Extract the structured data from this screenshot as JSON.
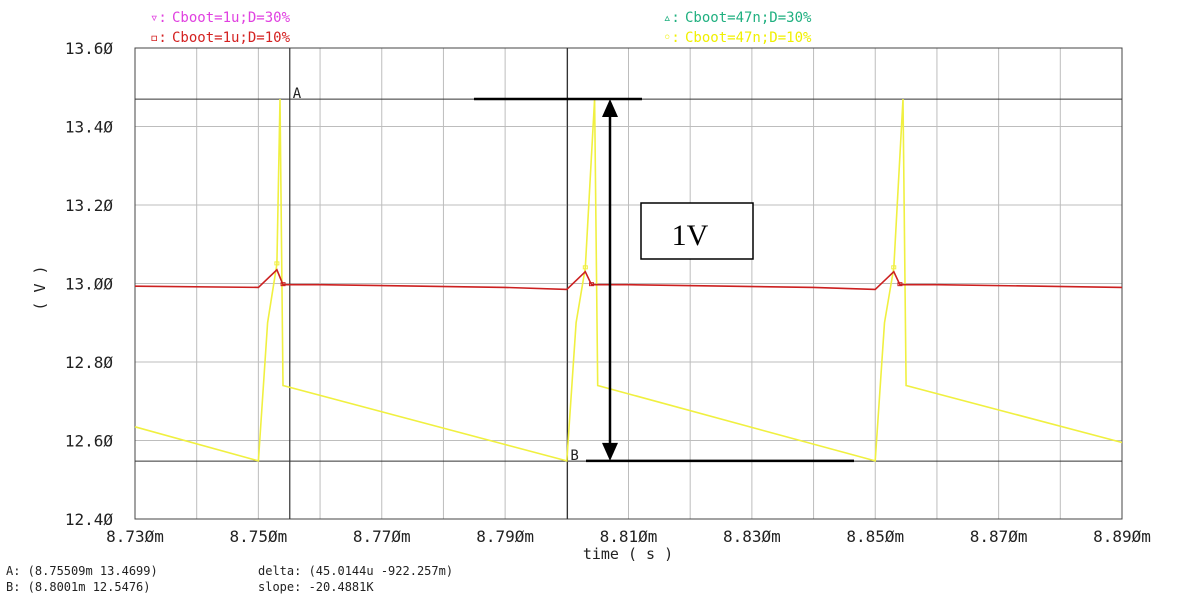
{
  "chart_data": {
    "type": "line",
    "xlabel": "time ( s )",
    "ylabel": "( V )",
    "xlim": [
      8.73,
      8.89
    ],
    "ylim": [
      12.4,
      13.6
    ],
    "x_unit_scale": "ms",
    "x_ticks": [
      "8.730m",
      "8.750m",
      "8.770m",
      "8.790m",
      "8.810m",
      "8.830m",
      "8.850m",
      "8.870m",
      "8.890m"
    ],
    "y_ticks": [
      "12.40",
      "12.60",
      "12.80",
      "13.00",
      "13.20",
      "13.40",
      "13.60"
    ],
    "grid": true,
    "legend": [
      {
        "marker": "▿",
        "name": "Cboot=1u;D=30%",
        "color": "#e040e0",
        "position": "top-left"
      },
      {
        "marker": "▫",
        "name": "Cboot=1u;D=10%",
        "color": "#d42020",
        "position": "top-left"
      },
      {
        "marker": "▵",
        "name": "Cboot=47n;D=30%",
        "color": "#20b080",
        "position": "top-right"
      },
      {
        "marker": "◦",
        "name": "Cboot=47n;D=10%",
        "color": "#f0f000",
        "position": "top-right"
      }
    ],
    "series": [
      {
        "name": "Cboot=47n;D=10%",
        "color": "#f0f040",
        "x": [
          8.73,
          8.75,
          8.7515,
          8.753,
          8.7535,
          8.754,
          8.8,
          8.8015,
          8.803,
          8.8045,
          8.805,
          8.85,
          8.8515,
          8.853,
          8.8545,
          8.855,
          8.89
        ],
        "y": [
          12.635,
          12.548,
          12.9,
          13.05,
          13.47,
          12.74,
          12.548,
          12.9,
          13.04,
          13.47,
          12.74,
          12.548,
          12.9,
          13.04,
          13.47,
          12.74,
          12.595
        ]
      },
      {
        "name": "Cboot=1u;D=10%",
        "color": "#cc2020",
        "x": [
          8.73,
          8.75,
          8.753,
          8.754,
          8.76,
          8.79,
          8.8,
          8.803,
          8.804,
          8.81,
          8.84,
          8.85,
          8.853,
          8.854,
          8.86,
          8.89
        ],
        "y": [
          12.993,
          12.99,
          13.035,
          12.997,
          12.997,
          12.99,
          12.985,
          13.03,
          12.997,
          12.997,
          12.99,
          12.985,
          13.03,
          12.997,
          12.997,
          12.99
        ]
      }
    ],
    "markers": [
      {
        "label": "A",
        "x": 8.75509,
        "y": 13.4699
      },
      {
        "label": "B",
        "x": 8.8001,
        "y": 12.5476
      }
    ],
    "annotation": {
      "text": "1V",
      "from_y": 13.47,
      "to_y": 12.548,
      "at_x": 8.807
    }
  },
  "readouts": {
    "a_line": "A: (8.75509m 13.4699)",
    "b_line": "B: (8.8001m 12.5476)",
    "delta_line": "delta: (45.0144u -922.257m)",
    "slope_line": "slope: -20.4881K"
  }
}
